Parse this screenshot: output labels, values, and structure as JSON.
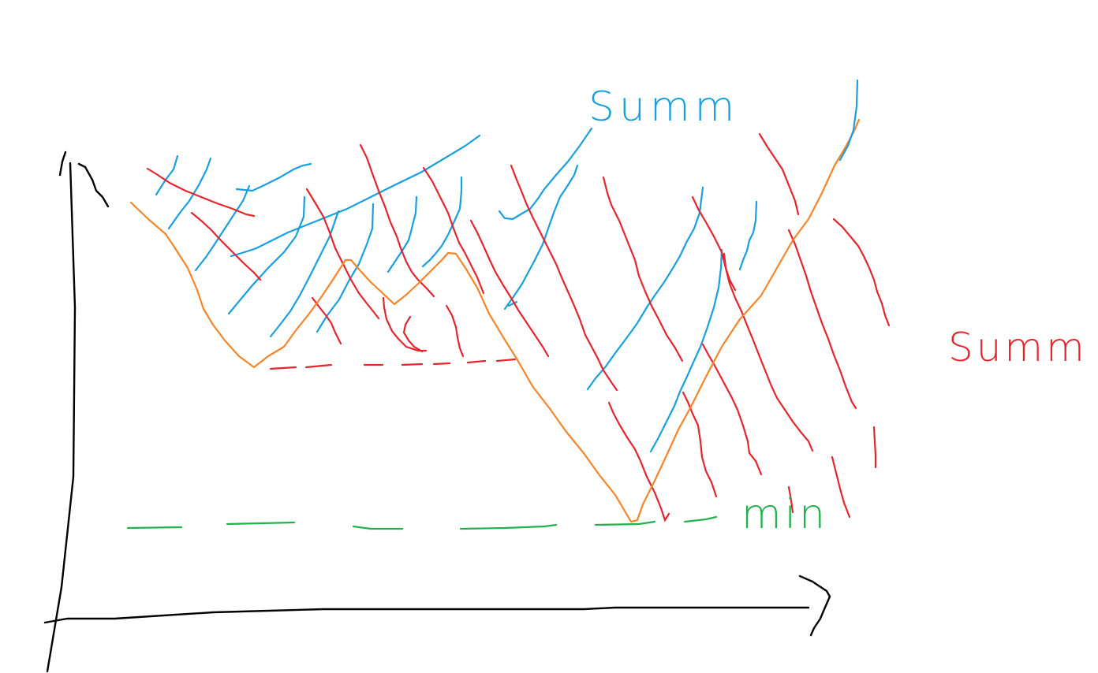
{
  "colors": {
    "axis": "#000000",
    "blue": "#1a9fde",
    "red": "#e3262e",
    "orange": "#f5852a",
    "green": "#22b14c"
  },
  "labels": {
    "blue_summ": "Summ",
    "red_summ": "Summ",
    "green_min": "min"
  }
}
